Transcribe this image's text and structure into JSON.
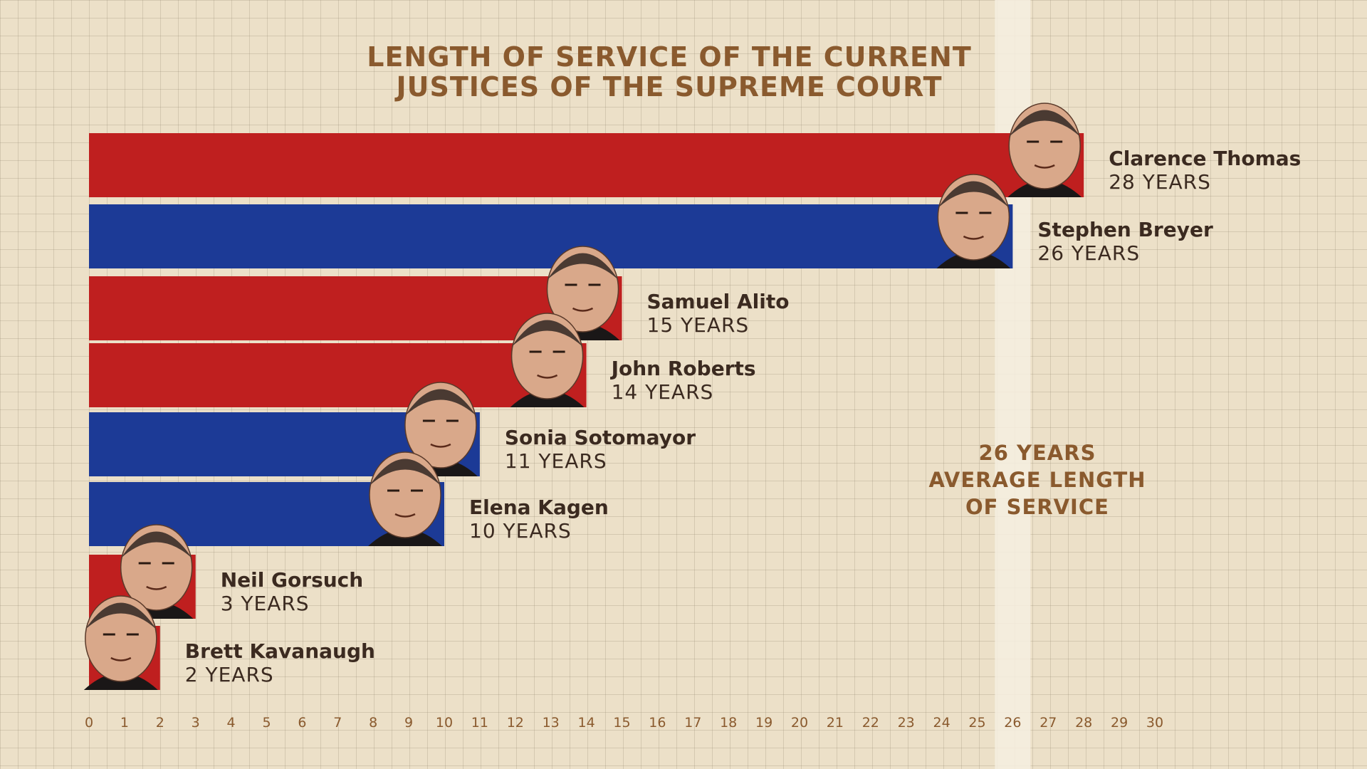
{
  "chart_data": {
    "type": "bar",
    "orientation": "horizontal",
    "title_lines": [
      "LENGTH OF SERVICE OF THE CURRENT",
      "JUSTICES OF THE SUPREME COURT"
    ],
    "bars": [
      {
        "name": "Clarence Thomas",
        "years": 28,
        "label": "28 YEARS",
        "color": "#bf1f1f"
      },
      {
        "name": "Stephen Breyer",
        "years": 26,
        "label": "26 YEARS",
        "color": "#1c3a96"
      },
      {
        "name": "Samuel Alito",
        "years": 15,
        "label": "15 YEARS",
        "color": "#bf1f1f"
      },
      {
        "name": "John Roberts",
        "years": 14,
        "label": "14 YEARS",
        "color": "#bf1f1f"
      },
      {
        "name": "Sonia Sotomayor",
        "years": 11,
        "label": "11 YEARS",
        "color": "#1c3a96"
      },
      {
        "name": "Elena Kagen",
        "years": 10,
        "label": "10 YEARS",
        "color": "#1c3a96"
      },
      {
        "name": "Neil Gorsuch",
        "years": 3,
        "label": "3 YEARS",
        "color": "#bf1f1f"
      },
      {
        "name": "Brett Kavanaugh",
        "years": 2,
        "label": "2 YEARS",
        "color": "#bf1f1f"
      }
    ],
    "x_ticks": [
      0,
      1,
      2,
      3,
      4,
      5,
      6,
      7,
      8,
      9,
      10,
      11,
      12,
      13,
      14,
      15,
      16,
      17,
      18,
      19,
      20,
      21,
      22,
      23,
      24,
      25,
      26,
      27,
      28,
      29,
      30
    ],
    "xlim": [
      0,
      30
    ],
    "average": {
      "value": 26,
      "lines": [
        "26 YEARS",
        "AVERAGE LENGTH",
        "OF SERVICE"
      ]
    },
    "grid": true,
    "legend": "none"
  },
  "colors": {
    "republican_red": "#bf1f1f",
    "democrat_blue": "#1c3a96",
    "title_brown": "#8a5a2e",
    "label_dark": "#3b2a20",
    "background": "#ece0c8"
  }
}
